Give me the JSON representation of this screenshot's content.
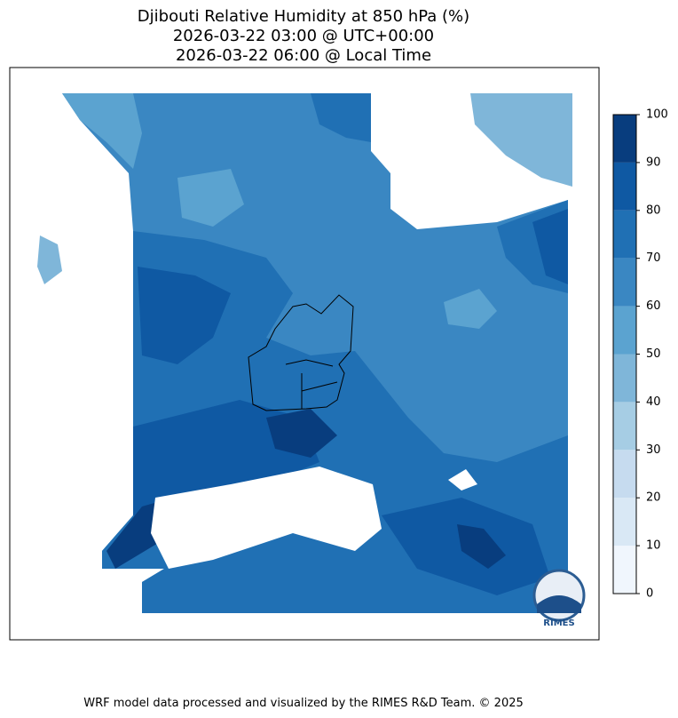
{
  "title": [
    "Djibouti Relative Humidity at 850 hPa (%)",
    "2026-03-22 03:00 @ UTC+00:00",
    "2026-03-22 06:00 @ Local Time"
  ],
  "colorbar": {
    "ticks": [
      0,
      10,
      20,
      30,
      40,
      50,
      60,
      70,
      80,
      90,
      100
    ],
    "colors": [
      "#f0f6fd",
      "#d9e8f5",
      "#c6dbef",
      "#a6cde4",
      "#7fb6d9",
      "#5ba3d0",
      "#3a87c2",
      "#2070b4",
      "#0f59a3",
      "#083d7e"
    ]
  },
  "logo": "RIMES",
  "footer": "WRF model data processed and visualized by the RIMES R&D Team. © 2025"
}
